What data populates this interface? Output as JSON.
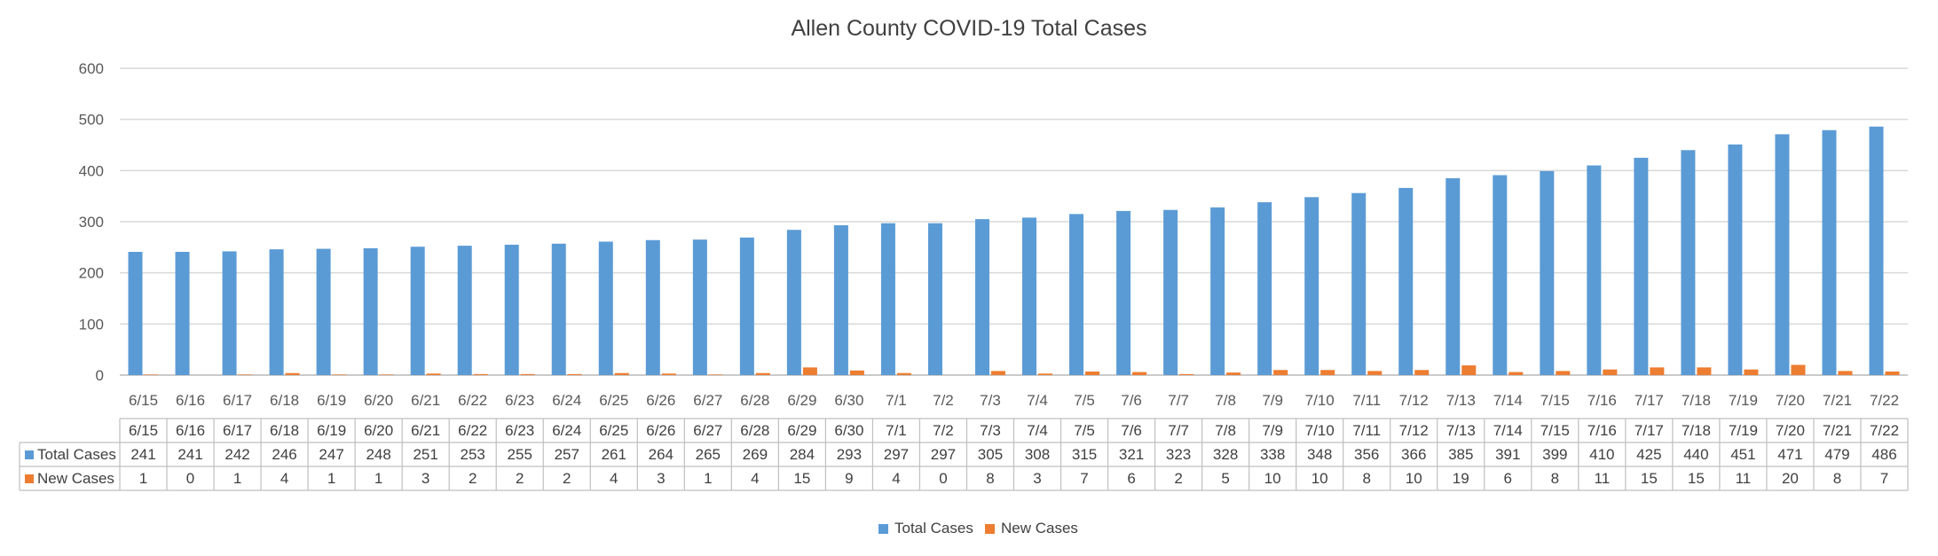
{
  "chart_data": {
    "type": "bar",
    "title": "Allen County COVID-19 Total Cases",
    "xlabel": "",
    "ylabel": "",
    "ylim": [
      0,
      600
    ],
    "yticks": [
      0,
      100,
      200,
      300,
      400,
      500,
      600
    ],
    "grid": true,
    "legend_position": "bottom",
    "categories": [
      "6/15",
      "6/16",
      "6/17",
      "6/18",
      "6/19",
      "6/20",
      "6/21",
      "6/22",
      "6/23",
      "6/24",
      "6/25",
      "6/26",
      "6/27",
      "6/28",
      "6/29",
      "6/30",
      "7/1",
      "7/2",
      "7/3",
      "7/4",
      "7/5",
      "7/6",
      "7/7",
      "7/8",
      "7/9",
      "7/10",
      "7/11",
      "7/12",
      "7/13",
      "7/14",
      "7/15",
      "7/16",
      "7/17",
      "7/18",
      "7/19",
      "7/20",
      "7/21",
      "7/22"
    ],
    "series": [
      {
        "name": "Total Cases",
        "color": "#5B9BD5",
        "values": [
          241,
          241,
          242,
          246,
          247,
          248,
          251,
          253,
          255,
          257,
          261,
          264,
          265,
          269,
          284,
          293,
          297,
          297,
          305,
          308,
          315,
          321,
          323,
          328,
          338,
          348,
          356,
          366,
          385,
          391,
          399,
          410,
          425,
          440,
          451,
          471,
          479,
          486
        ]
      },
      {
        "name": "New Cases",
        "color": "#ED7D31",
        "values": [
          1,
          0,
          1,
          4,
          1,
          1,
          3,
          2,
          2,
          2,
          4,
          3,
          1,
          4,
          15,
          9,
          4,
          0,
          8,
          3,
          7,
          6,
          2,
          5,
          10,
          10,
          8,
          10,
          19,
          6,
          8,
          11,
          15,
          15,
          11,
          20,
          8,
          7
        ]
      }
    ],
    "data_table": true
  }
}
